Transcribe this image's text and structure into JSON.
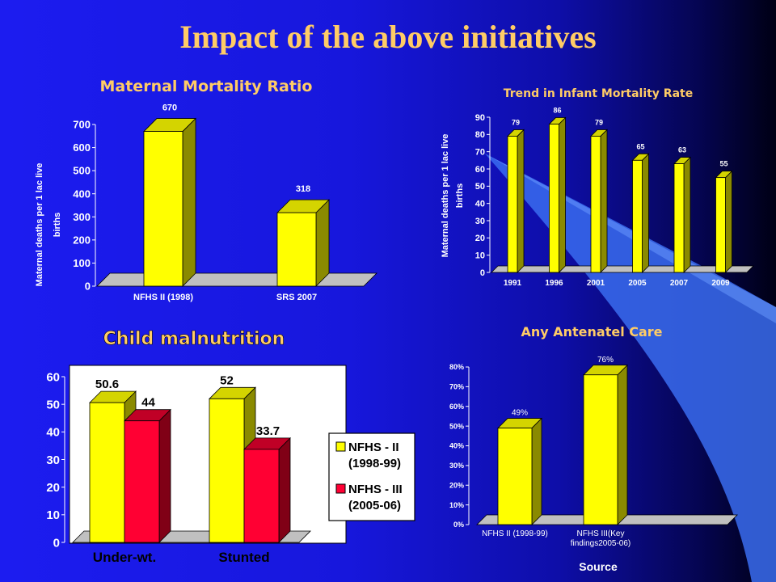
{
  "slide": {
    "title": "Impact of the above initiatives"
  },
  "chart_data": [
    {
      "type": "bar",
      "title": "Maternal Mortality Ratio",
      "ylabel": "Maternal deaths per 1 lac live births",
      "xlabel": "",
      "categories": [
        "NFHS II (1998)",
        "SRS 2007"
      ],
      "values": [
        670,
        318
      ],
      "data_labels": [
        "670",
        "318"
      ],
      "yticks": [
        "0",
        "100",
        "200",
        "300",
        "400",
        "500",
        "600",
        "700"
      ],
      "ylim": [
        0,
        700
      ],
      "colors": {
        "bar": "#ffff00",
        "floor": "#c0c0c0"
      },
      "grid": false
    },
    {
      "type": "bar",
      "title": "Trend in Infant Mortality Rate",
      "ylabel": "Maternal deaths per 1 lac live births",
      "xlabel": "",
      "categories": [
        "1991",
        "1996",
        "2001",
        "2005",
        "2007",
        "2009"
      ],
      "values": [
        79,
        86,
        79,
        65,
        63,
        55
      ],
      "data_labels": [
        "79",
        "86",
        "79",
        "65",
        "63",
        "55"
      ],
      "yticks": [
        "0",
        "10",
        "20",
        "30",
        "40",
        "50",
        "60",
        "70",
        "80",
        "90"
      ],
      "ylim": [
        0,
        90
      ],
      "colors": {
        "bar": "#ffff00",
        "floor": "#c0c0c0"
      },
      "grid": false
    },
    {
      "type": "bar",
      "title": "Child malnutrition",
      "xlabel": "",
      "ylabel": "",
      "categories": [
        "Under-wt.",
        "Stunted"
      ],
      "series": [
        {
          "name": "NFHS - II (1998-99)",
          "values": [
            50.6,
            52
          ],
          "data_labels": [
            "50.6",
            "52"
          ]
        },
        {
          "name": "NFHS - III (2005-06)",
          "values": [
            44,
            33.7
          ],
          "data_labels": [
            "44",
            "33.7"
          ]
        }
      ],
      "yticks": [
        "0",
        "10",
        "20",
        "30",
        "40",
        "50",
        "60"
      ],
      "ylim": [
        0,
        60
      ],
      "legend": {
        "position": "right",
        "lines": [
          [
            "NFHS - II",
            "(1998-99)"
          ],
          [
            "NFHS - III",
            "(2005-06)"
          ]
        ]
      },
      "colors": {
        "series": [
          "#ffff00",
          "#ff0033"
        ],
        "floor": "#c0c0c0",
        "background": "#ffffff"
      },
      "grid": false
    },
    {
      "type": "bar",
      "title": "Any Antenatel Care",
      "xlabel": "Source",
      "ylabel": "",
      "categories": [
        "NFHS II (1998-99)",
        "NFHS III(Key findings2005-06)"
      ],
      "category_lines": [
        [
          "NFHS II (1998-99)"
        ],
        [
          "NFHS III(Key",
          "findings2005-06)"
        ]
      ],
      "values": [
        49,
        76
      ],
      "data_labels": [
        "49%",
        "76%"
      ],
      "yticks": [
        "0%",
        "10%",
        "20%",
        "30%",
        "40%",
        "50%",
        "60%",
        "70%",
        "80%"
      ],
      "ylim": [
        0,
        80
      ],
      "colors": {
        "bar": "#ffff00",
        "floor": "#c0c0c0"
      },
      "grid": false
    }
  ]
}
